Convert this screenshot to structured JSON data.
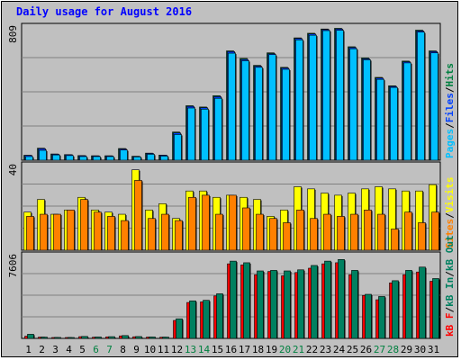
{
  "title": "Daily usage for August 2016",
  "colors": {
    "title": "#0000ff",
    "frame_bg": "#c0c0c0",
    "hits": "#008040",
    "files": "#0040ff",
    "pages": "#00c0ff",
    "visits": "#ffff00",
    "sites": "#ff8000",
    "kbytes_in": "#ff0000",
    "kbytes_out": "#008060",
    "weekend_label": "#008040",
    "weekday_label": "#000000"
  },
  "chart_data": [
    {
      "type": "bar",
      "panel": "hits-files-pages",
      "categories": [
        "1",
        "2",
        "3",
        "4",
        "5",
        "6",
        "7",
        "8",
        "9",
        "10",
        "11",
        "12",
        "13",
        "14",
        "15",
        "16",
        "17",
        "18",
        "19",
        "20",
        "21",
        "22",
        "23",
        "24",
        "25",
        "26",
        "27",
        "28",
        "29",
        "30",
        "31"
      ],
      "y_max_label": "809",
      "ylim": [
        0,
        809
      ],
      "side_labels": [
        "Pages",
        "/",
        "Files",
        "/",
        "Hits"
      ],
      "series": [
        {
          "name": "Hits",
          "values": [
            30,
            73,
            38,
            34,
            28,
            27,
            27,
            71,
            24,
            43,
            31,
            171,
            331,
            323,
            392,
            664,
            618,
            576,
            652,
            564,
            743,
            771,
            797,
            801,
            689,
            621,
            503,
            452,
            602,
            790,
            664
          ]
        },
        {
          "name": "Files",
          "values": [
            29,
            70,
            36,
            33,
            27,
            26,
            26,
            68,
            23,
            41,
            30,
            166,
            327,
            319,
            386,
            660,
            612,
            571,
            647,
            560,
            739,
            767,
            793,
            797,
            684,
            616,
            499,
            448,
            598,
            785,
            660
          ]
        },
        {
          "name": "Pages",
          "values": [
            22,
            60,
            32,
            28,
            22,
            22,
            22,
            62,
            20,
            36,
            25,
            156,
            317,
            310,
            376,
            650,
            604,
            564,
            641,
            552,
            731,
            759,
            787,
            789,
            677,
            610,
            491,
            442,
            591,
            778,
            652
          ]
        }
      ]
    },
    {
      "type": "bar",
      "panel": "visits-sites",
      "categories": [
        "1",
        "2",
        "3",
        "4",
        "5",
        "6",
        "7",
        "8",
        "9",
        "10",
        "11",
        "12",
        "13",
        "14",
        "15",
        "16",
        "17",
        "18",
        "19",
        "20",
        "21",
        "22",
        "23",
        "24",
        "25",
        "26",
        "27",
        "28",
        "29",
        "30",
        "31"
      ],
      "y_max_label": "40",
      "ylim": [
        0,
        40
      ],
      "side_labels": [
        "Visits",
        "/",
        "Sites"
      ],
      "series": [
        {
          "name": "Visits",
          "values": [
            18,
            24,
            17,
            19,
            25,
            19,
            18,
            17,
            38,
            19,
            22,
            15,
            28,
            28,
            25,
            26,
            25,
            24,
            16,
            19,
            30,
            29,
            27,
            26,
            27,
            29,
            30,
            29,
            28,
            28,
            31
          ]
        },
        {
          "name": "Sites",
          "values": [
            16,
            17,
            17,
            19,
            24,
            18,
            16,
            14,
            33,
            15,
            17,
            14,
            25,
            26,
            17,
            26,
            20,
            17,
            15,
            13,
            19,
            15,
            17,
            16,
            17,
            19,
            17,
            10,
            18,
            13,
            18
          ]
        }
      ]
    },
    {
      "type": "bar",
      "panel": "kbytes",
      "categories": [
        "1",
        "2",
        "3",
        "4",
        "5",
        "6",
        "7",
        "8",
        "9",
        "10",
        "11",
        "12",
        "13",
        "14",
        "15",
        "16",
        "17",
        "18",
        "19",
        "20",
        "21",
        "22",
        "23",
        "24",
        "25",
        "26",
        "27",
        "28",
        "29",
        "30",
        "31"
      ],
      "y_max_label": "7606",
      "ylim": [
        0,
        7606
      ],
      "side_labels": [
        "kB F",
        "/",
        "kB In",
        "/",
        "kB Out"
      ],
      "series": [
        {
          "name": "kB In",
          "values": [
            200,
            120,
            80,
            75,
            160,
            110,
            140,
            230,
            150,
            120,
            110,
            1650,
            3300,
            3350,
            3900,
            6850,
            6750,
            5850,
            6150,
            5750,
            6050,
            6450,
            6850,
            6950,
            5850,
            3950,
            3550,
            5100,
            5850,
            6100,
            5250
          ]
        },
        {
          "name": "kB Out",
          "values": [
            380,
            120,
            90,
            85,
            180,
            130,
            160,
            260,
            170,
            130,
            120,
            1800,
            3450,
            3500,
            4100,
            7100,
            6950,
            6200,
            6250,
            6200,
            6300,
            6700,
            7100,
            7250,
            6250,
            4050,
            3850,
            5300,
            6250,
            6550,
            5500
          ]
        }
      ]
    }
  ]
}
